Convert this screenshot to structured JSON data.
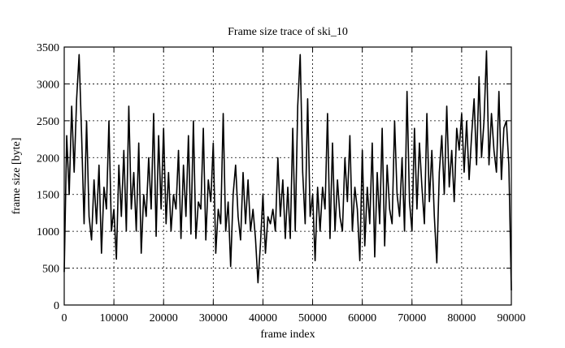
{
  "chart_data": {
    "type": "line",
    "title": "Frame size trace of ski_10",
    "xlabel": "frame index",
    "ylabel": "frame size [byte]",
    "xlim": [
      0,
      90000
    ],
    "ylim": [
      0,
      3500
    ],
    "grid": true,
    "legend": "none",
    "line_color": "#000000",
    "xticks": [
      0,
      10000,
      20000,
      30000,
      40000,
      50000,
      60000,
      70000,
      80000,
      90000
    ],
    "xtick_labels": [
      "0",
      "10000",
      "20000",
      "30000",
      "40000",
      "50000",
      "60000",
      "70000",
      "80000",
      "90000"
    ],
    "yticks": [
      0,
      500,
      1000,
      1500,
      2000,
      2500,
      3000,
      3500
    ],
    "ytick_labels": [
      "0",
      "500",
      "1000",
      "1500",
      "2000",
      "2500",
      "3000",
      "3500"
    ],
    "x_step": 500,
    "series": [
      {
        "values": [
          450,
          2300,
          1500,
          2700,
          1800,
          2800,
          3400,
          2300,
          1100,
          2500,
          1200,
          880,
          1700,
          1100,
          1900,
          700,
          1600,
          1300,
          2500,
          1000,
          1300,
          620,
          1900,
          1200,
          2100,
          1000,
          2700,
          1300,
          1800,
          1000,
          2200,
          700,
          1500,
          1200,
          2000,
          1300,
          2600,
          930,
          2300,
          1300,
          2400,
          1100,
          1800,
          1000,
          1500,
          1300,
          2100,
          900,
          1900,
          1200,
          2300,
          960,
          2500,
          900,
          1400,
          1300,
          2400,
          880,
          1700,
          1400,
          2200,
          700,
          1300,
          1100,
          2600,
          1000,
          1400,
          520,
          1500,
          1900,
          1200,
          880,
          1800,
          1100,
          1700,
          1000,
          1300,
          900,
          300,
          830,
          1500,
          700,
          1200,
          1100,
          1300,
          1000,
          2000,
          1200,
          1700,
          900,
          1600,
          900,
          2400,
          1000,
          2700,
          3400,
          1800,
          1100,
          2800,
          1200,
          1500,
          600,
          1600,
          1000,
          1600,
          1300,
          2600,
          900,
          2200,
          1000,
          1700,
          1200,
          1000,
          2000,
          1400,
          2300,
          1000,
          1600,
          1300,
          600,
          2100,
          800,
          1600,
          1100,
          2200,
          650,
          1800,
          1100,
          2400,
          800,
          1900,
          1300,
          1100,
          2500,
          1500,
          1200,
          2000,
          1000,
          2900,
          1400,
          1000,
          2400,
          1300,
          2200,
          1600,
          1100,
          2600,
          1400,
          2100,
          1200,
          570,
          1800,
          2300,
          1500,
          2700,
          1600,
          2100,
          1400,
          2400,
          2100,
          2600,
          1800,
          2500,
          1700,
          2300,
          2800,
          1900,
          3100,
          2000,
          2500,
          3450,
          1900,
          2600,
          2100,
          1800,
          2900,
          1700,
          2400,
          2500,
          1900,
          200
        ]
      }
    ]
  }
}
